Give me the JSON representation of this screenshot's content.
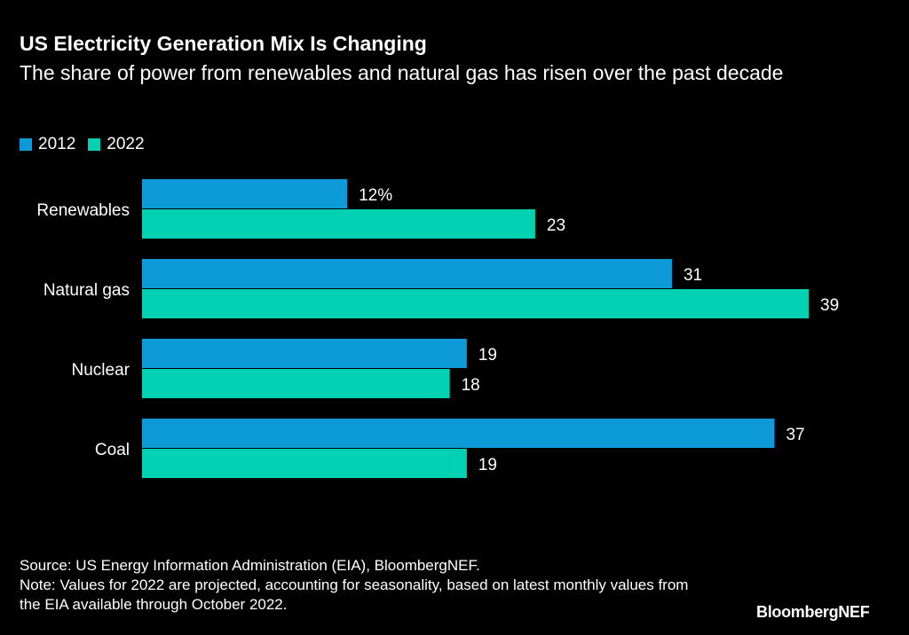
{
  "chart_data": {
    "type": "bar",
    "orientation": "horizontal",
    "title": "US Electricity Generation Mix Is Changing",
    "subtitle": "The share of power from renewables and natural gas has risen over the past decade",
    "categories": [
      "Renewables",
      "Natural gas",
      "Nuclear",
      "Coal"
    ],
    "series": [
      {
        "name": "2012",
        "values": [
          12,
          31,
          19,
          37
        ],
        "color": "#0d9ad8"
      },
      {
        "name": "2022",
        "values": [
          23,
          39,
          18,
          19
        ],
        "color": "#00d1b2"
      }
    ],
    "value_labels": [
      [
        "12%",
        "31",
        "19",
        "37"
      ],
      [
        "23",
        "39",
        "18",
        "19"
      ]
    ],
    "unit": "%",
    "xlim": [
      0,
      39
    ],
    "grid": false,
    "legend_position": "top-left"
  },
  "footer": {
    "source": "Source: US Energy Information Administration (EIA), BloombergNEF.",
    "note": "Note: Values for 2022 are projected, accounting for seasonality, based on latest monthly values from the EIA available through October 2022.",
    "logo": "BloombergNEF"
  }
}
